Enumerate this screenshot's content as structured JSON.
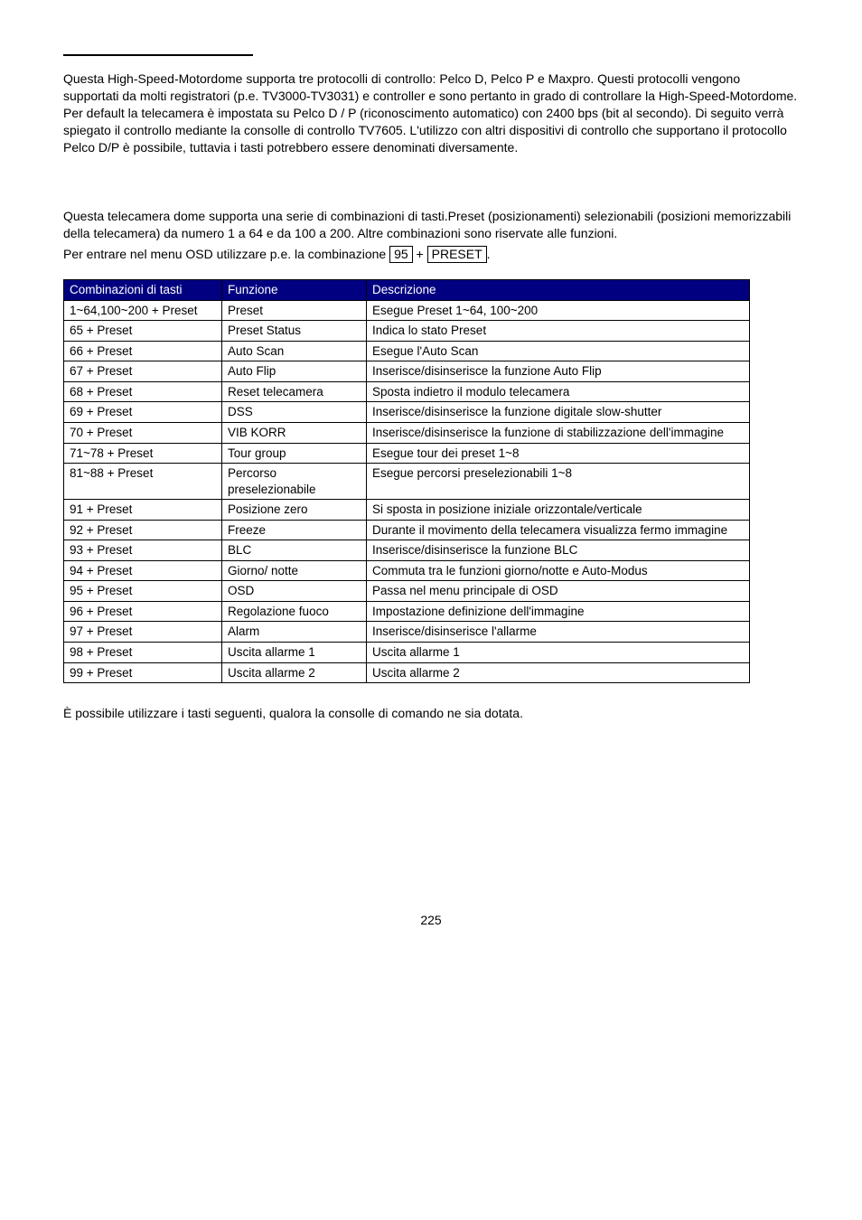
{
  "intro": {
    "paragraph1": "Questa High-Speed-Motordome supporta tre protocolli di controllo: Pelco D, Pelco P e Maxpro. Questi protocolli vengono supportati da molti registratori (p.e. TV3000-TV3031) e controller e sono pertanto in grado di controllare la High-Speed-Motordome. Per default la telecamera è impostata su Pelco D / P (riconoscimento automatico) con 2400 bps (bit al secondo). Di seguito verrà spiegato il controllo mediante la consolle di controllo TV7605. L'utilizzo con altri dispositivi di controllo che supportano il protocollo Pelco D/P è possibile, tuttavia i tasti potrebbero essere denominati diversamente.",
    "paragraph2": "Questa telecamera dome supporta una serie di combinazioni di tasti.Preset (posizionamenti) selezionabili (posizioni memorizzabili della telecamera) da numero 1 a 64 e da 100 a 200. Altre combinazioni sono riservate alle funzioni.",
    "instruction_pre": "Per entrare nel menu OSD utilizzare p.e. la combinazione ",
    "key1": "95",
    "plus": " + ",
    "key2": "PRESET",
    "period": "."
  },
  "table": {
    "headers": [
      "Combinazioni di tasti",
      "Funzione",
      "Descrizione"
    ],
    "header_bg": "#000080",
    "header_color": "#ffffff",
    "rows": [
      [
        "1~64,100~200 + Preset",
        "Preset",
        "Esegue Preset 1~64, 100~200"
      ],
      [
        "65 + Preset",
        "Preset Status",
        "Indica lo stato Preset"
      ],
      [
        "66 + Preset",
        "Auto Scan",
        "Esegue l'Auto Scan"
      ],
      [
        "67 + Preset",
        "Auto Flip",
        "Inserisce/disinserisce la funzione Auto Flip"
      ],
      [
        "68 + Preset",
        "Reset telecamera",
        "Sposta indietro il modulo telecamera"
      ],
      [
        "69 + Preset",
        "DSS",
        "Inserisce/disinserisce la funzione digitale slow-shutter"
      ],
      [
        "70 + Preset",
        "VIB KORR",
        "Inserisce/disinserisce la funzione di stabilizzazione dell'immagine"
      ],
      [
        "71~78 + Preset",
        "Tour group",
        "Esegue tour dei preset 1~8"
      ],
      [
        "81~88 + Preset",
        "Percorso preselezionabile",
        "Esegue percorsi preselezionabili 1~8"
      ],
      [
        "91 + Preset",
        "Posizione zero",
        "Si sposta in posizione iniziale orizzontale/verticale"
      ],
      [
        "92 + Preset",
        "Freeze",
        "Durante il movimento della telecamera visualizza fermo immagine"
      ],
      [
        "93 + Preset",
        "BLC",
        "Inserisce/disinserisce la funzione BLC"
      ],
      [
        "94 + Preset",
        "Giorno/ notte",
        "Commuta tra le funzioni giorno/notte e Auto-Modus"
      ],
      [
        "95 + Preset",
        "OSD",
        "Passa nel menu principale di OSD"
      ],
      [
        "96 + Preset",
        "Regolazione fuoco",
        "Impostazione definizione dell'immagine"
      ],
      [
        "97 + Preset",
        "Alarm",
        "Inserisce/disinserisce l'allarme"
      ],
      [
        "98 + Preset",
        "Uscita allarme 1",
        "Uscita allarme 1"
      ],
      [
        "99 + Preset",
        "Uscita allarme 2",
        "Uscita allarme 2"
      ]
    ]
  },
  "closing": "È possibile utilizzare i tasti seguenti, qualora la consolle di comando ne sia dotata.",
  "page_number": "225"
}
